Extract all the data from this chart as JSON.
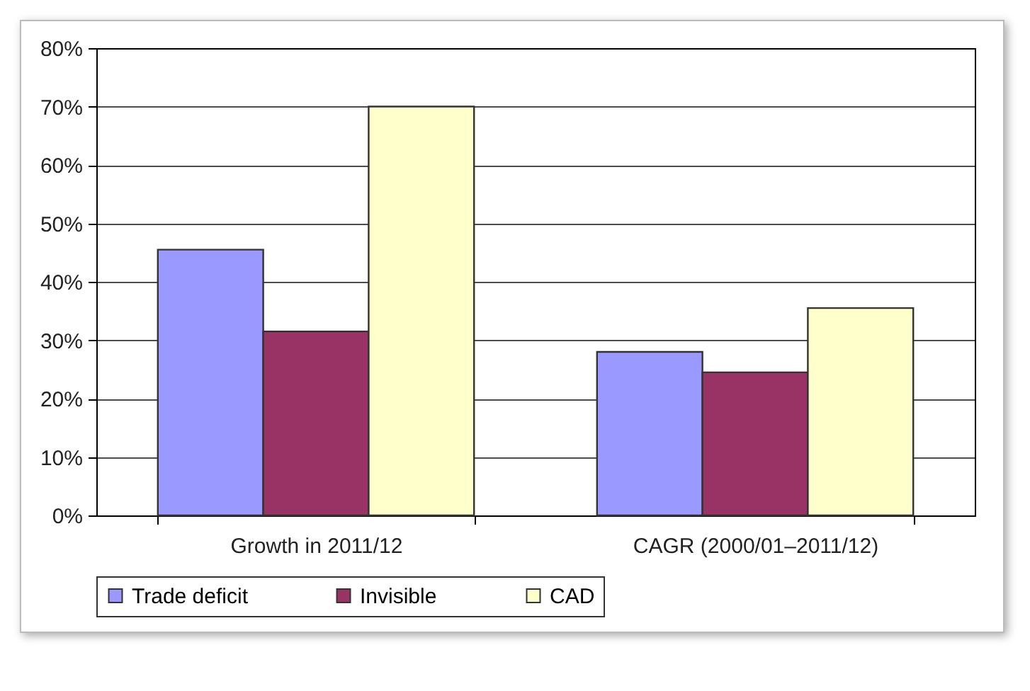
{
  "chart_data": {
    "type": "bar",
    "categories": [
      "Growth in 2011/12",
      "CAGR (2000/01–2011/12)"
    ],
    "series": [
      {
        "name": "Trade deficit",
        "color": "#9999ff",
        "values": [
          45.5,
          28
        ]
      },
      {
        "name": "Invisible",
        "color": "#993366",
        "values": [
          31.5,
          24.5
        ]
      },
      {
        "name": "CAD",
        "color": "#ffffcc",
        "values": [
          70,
          35.5
        ]
      }
    ],
    "ylim": [
      0,
      80
    ],
    "yticks": [
      {
        "value": 0,
        "label": "0%"
      },
      {
        "value": 10,
        "label": "10%"
      },
      {
        "value": 20,
        "label": "20%"
      },
      {
        "value": 30,
        "label": "30%"
      },
      {
        "value": 40,
        "label": "40%"
      },
      {
        "value": 50,
        "label": "50%"
      },
      {
        "value": 60,
        "label": "60%"
      },
      {
        "value": 70,
        "label": "70%"
      },
      {
        "value": 80,
        "label": "80%"
      }
    ],
    "grid": "y",
    "legend": "bottom"
  }
}
